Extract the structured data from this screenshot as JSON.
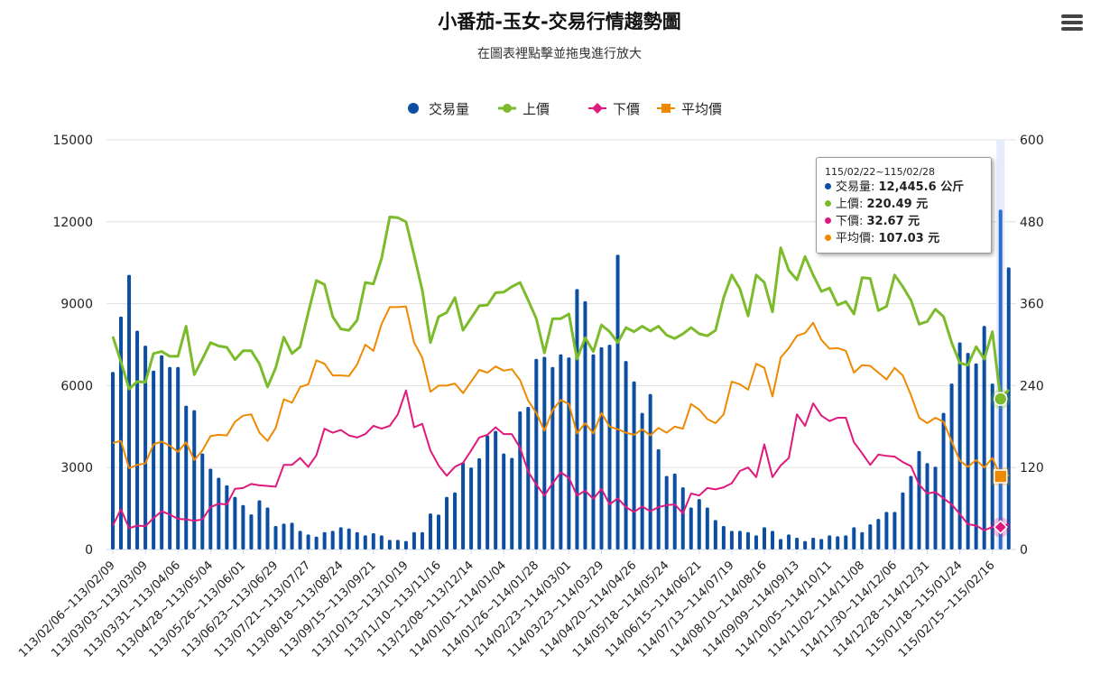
{
  "title": "小番茄-玉女-交易行情趨勢圖",
  "subtitle": "在圖表裡點擊並拖曳進行放大",
  "menu_icon": "hamburger-menu-icon",
  "colors": {
    "volume": "#0b4ea2",
    "upper": "#7cbb2b",
    "lower": "#e0197d",
    "avg": "#ef8a00",
    "highlight": "#e6ecfb",
    "grid": "#e0e0e0"
  },
  "tooltip": {
    "header": "115/02/22~115/02/28",
    "rows": [
      {
        "label": "交易量: ",
        "value": "12,445.6 公斤"
      },
      {
        "label": "上價: ",
        "value": "220.49 元"
      },
      {
        "label": "下價: ",
        "value": "32.67 元"
      },
      {
        "label": "平均價: ",
        "value": "107.03 元"
      }
    ]
  },
  "chart_data": {
    "type": "bar+line",
    "title": "小番茄-玉女-交易行情趨勢圖",
    "legend": [
      "交易量",
      "上價",
      "下價",
      "平均價"
    ],
    "legend_position": "top-center",
    "grid": true,
    "y_left": {
      "min": 0,
      "max": 15000,
      "ticks": [
        "0",
        "3000",
        "6000",
        "9000",
        "12000",
        "15000"
      ]
    },
    "y_right": {
      "min": 0,
      "max": 600,
      "ticks": [
        "0",
        "120",
        "240",
        "360",
        "480",
        "600"
      ]
    },
    "x_tick_labels": [
      "113/02/06~113/02/09",
      "113/03/03~113/03/09",
      "113/03/31~113/04/06",
      "113/04/28~113/05/04",
      "113/05/26~113/06/01",
      "113/06/23~113/06/29",
      "113/07/21~113/07/27",
      "113/08/18~113/08/24",
      "113/09/15~113/09/21",
      "113/10/13~113/10/19",
      "113/11/10~113/11/16",
      "113/12/08~113/12/14",
      "114/01/01~114/01/04",
      "114/01/26~114/01/28",
      "114/02/23~114/03/01",
      "114/03/23~114/03/29",
      "114/04/20~114/04/26",
      "114/05/18~114/05/24",
      "114/06/15~114/06/21",
      "114/07/13~114/07/19",
      "114/08/10~114/08/16",
      "114/09/09~114/09/13",
      "114/10/05~114/10/11",
      "114/11/02~114/11/08",
      "114/11/30~114/12/06",
      "114/12/28~114/12/31",
      "115/01/18~115/01/24",
      "115/02/15~115/02/16"
    ],
    "highlight_index": 109,
    "series": [
      {
        "name": "交易量",
        "type": "bar",
        "axis": "left",
        "values": [
          6500,
          8527,
          10055,
          8011,
          7461,
          6549,
          7110,
          6681,
          6681,
          5264,
          5099,
          3516,
          2956,
          2626,
          2352,
          1923,
          1626,
          1286,
          1802,
          1538,
          857,
          945,
          978,
          681,
          549,
          472,
          637,
          681,
          813,
          769,
          637,
          516,
          593,
          516,
          352,
          352,
          308,
          637,
          637,
          1319,
          1275,
          1923,
          2088,
          3187,
          3000,
          3341,
          4176,
          4341,
          3516,
          3352,
          5055,
          5220,
          6978,
          7055,
          6681,
          7143,
          7033,
          9538,
          9088,
          7143,
          7407,
          7495,
          10791,
          6901,
          6154,
          5000,
          5692,
          3670,
          2692,
          2780,
          2275,
          1538,
          1846,
          1538,
          1077,
          857,
          681,
          681,
          637,
          516,
          813,
          681,
          385,
          549,
          429,
          308,
          429,
          385,
          516,
          484,
          516,
          813,
          637,
          923,
          1121,
          1374,
          1374,
          2088,
          2692,
          3604,
          3165,
          3033,
          5000,
          6077,
          7582,
          7198,
          6813,
          8187,
          6077,
          12445.6,
          10330
        ]
      },
      {
        "name": "上價",
        "type": "line",
        "axis": "right",
        "values": [
          312,
          275,
          235,
          246,
          245,
          287,
          290,
          283,
          283,
          327,
          256,
          279,
          303,
          298,
          296,
          278,
          291,
          291,
          272,
          238,
          266,
          311,
          287,
          297,
          347,
          394,
          388,
          341,
          323,
          321,
          336,
          391,
          389,
          426,
          487,
          486,
          480,
          431,
          380,
          303,
          341,
          347,
          369,
          321,
          339,
          357,
          358,
          376,
          377,
          385,
          391,
          365,
          338,
          288,
          338,
          338,
          345,
          279,
          310,
          290,
          329,
          319,
          303,
          325,
          319,
          327,
          320,
          327,
          314,
          309,
          316,
          325,
          316,
          313,
          321,
          369,
          402,
          382,
          342,
          402,
          391,
          348,
          442,
          409,
          395,
          429,
          402,
          378,
          383,
          358,
          363,
          345,
          398,
          397,
          350,
          356,
          402,
          385,
          365,
          330,
          334,
          352,
          341,
          303,
          273,
          270,
          297,
          279,
          319,
          220.49,
          234
        ]
      },
      {
        "name": "下價",
        "type": "line",
        "axis": "right",
        "values": [
          35,
          59,
          31,
          35,
          34,
          46,
          56,
          51,
          45,
          44,
          42,
          44,
          62,
          67,
          66,
          89,
          90,
          96,
          94,
          93,
          92,
          124,
          124,
          134,
          121,
          138,
          177,
          171,
          175,
          167,
          164,
          169,
          181,
          177,
          181,
          198,
          233,
          179,
          184,
          145,
          123,
          108,
          121,
          127,
          145,
          164,
          168,
          179,
          169,
          169,
          149,
          114,
          95,
          79,
          97,
          113,
          105,
          79,
          86,
          74,
          89,
          66,
          75,
          62,
          55,
          63,
          56,
          62,
          65,
          66,
          53,
          82,
          79,
          90,
          88,
          91,
          97,
          115,
          120,
          106,
          154,
          106,
          123,
          134,
          198,
          181,
          214,
          196,
          188,
          193,
          193,
          157,
          141,
          124,
          139,
          137,
          136,
          128,
          122,
          95,
          82,
          84,
          75,
          66,
          52,
          37,
          35,
          28,
          33,
          32.67,
          37
        ]
      },
      {
        "name": "平均價",
        "type": "line",
        "axis": "right",
        "values": [
          156,
          159,
          119,
          124,
          126,
          154,
          158,
          152,
          143,
          157,
          131,
          145,
          166,
          168,
          167,
          187,
          196,
          198,
          171,
          159,
          178,
          220,
          215,
          238,
          242,
          277,
          272,
          255,
          255,
          254,
          271,
          300,
          291,
          330,
          355,
          355,
          356,
          303,
          281,
          231,
          240,
          240,
          243,
          229,
          246,
          263,
          259,
          268,
          262,
          264,
          248,
          218,
          200,
          174,
          204,
          219,
          213,
          170,
          185,
          170,
          200,
          180,
          176,
          171,
          168,
          176,
          167,
          178,
          171,
          180,
          177,
          213,
          205,
          191,
          185,
          198,
          246,
          242,
          234,
          272,
          266,
          224,
          281,
          295,
          313,
          317,
          332,
          307,
          294,
          295,
          291,
          259,
          270,
          269,
          259,
          249,
          266,
          255,
          226,
          193,
          185,
          193,
          187,
          158,
          130,
          121,
          131,
          120,
          134,
          107.03,
          109
        ]
      }
    ]
  }
}
